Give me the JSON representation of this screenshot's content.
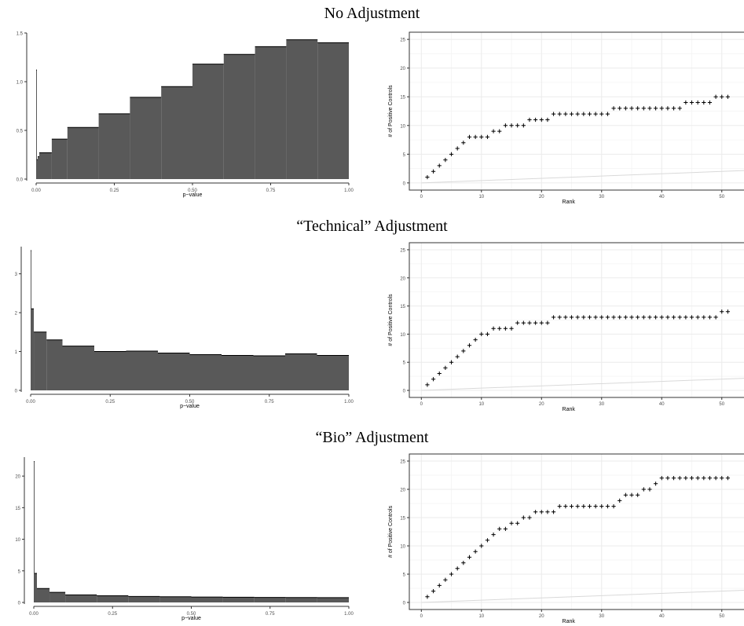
{
  "sections": [
    {
      "title": "No Adjustment"
    },
    {
      "title": "“Technical” Adjustment"
    },
    {
      "title": "“Bio” Adjustment"
    }
  ],
  "colors": {
    "fill": "#595959",
    "outline": "#000000",
    "grid": "#ebebeb",
    "diag": "#d9d9d9",
    "axis": "#333333"
  },
  "chart_data": [
    {
      "type": "bar",
      "subtype": "histogram",
      "xlabel": "p−value",
      "ylabel": "",
      "xlim": [
        0,
        1
      ],
      "ylim": [
        0,
        1.5
      ],
      "xticks": [
        0,
        0.25,
        0.5,
        0.75,
        1
      ],
      "xtick_labels": [
        "0.00",
        "0.25",
        "0.50",
        "0.75",
        "1.00"
      ],
      "yticks": [
        0,
        0.5,
        1.0,
        1.5
      ],
      "ytick_labels": [
        "0.0",
        "0.5",
        "1.0",
        "1.5"
      ],
      "grid": false,
      "bins": [
        {
          "x0": 0.0,
          "x1": 0.002,
          "value": 1.12
        },
        {
          "x0": 0.002,
          "x1": 0.005,
          "value": 0.2
        },
        {
          "x0": 0.005,
          "x1": 0.01,
          "value": 0.23
        },
        {
          "x0": 0.01,
          "x1": 0.05,
          "value": 0.27
        },
        {
          "x0": 0.05,
          "x1": 0.1,
          "value": 0.41
        },
        {
          "x0": 0.1,
          "x1": 0.2,
          "value": 0.53
        },
        {
          "x0": 0.2,
          "x1": 0.3,
          "value": 0.67
        },
        {
          "x0": 0.3,
          "x1": 0.4,
          "value": 0.84
        },
        {
          "x0": 0.4,
          "x1": 0.5,
          "value": 0.95
        },
        {
          "x0": 0.5,
          "x1": 0.6,
          "value": 1.18
        },
        {
          "x0": 0.6,
          "x1": 0.7,
          "value": 1.28
        },
        {
          "x0": 0.7,
          "x1": 0.8,
          "value": 1.36
        },
        {
          "x0": 0.8,
          "x1": 0.9,
          "value": 1.43
        },
        {
          "x0": 0.9,
          "x1": 1.0,
          "value": 1.4
        }
      ]
    },
    {
      "type": "scatter",
      "marker": "+",
      "xlabel": "Rank",
      "ylabel": "# of Positive Controls",
      "xlim": [
        -2,
        55
      ],
      "ylim": [
        -1.25,
        26.25
      ],
      "xticks": [
        0,
        10,
        20,
        30,
        40,
        50
      ],
      "yticks": [
        0,
        5,
        10,
        15,
        20,
        25
      ],
      "grid": true,
      "reference_line": {
        "x": [
          0,
          55
        ],
        "y": [
          0,
          2.2
        ]
      },
      "x": [
        1,
        2,
        3,
        4,
        5,
        6,
        7,
        8,
        9,
        10,
        11,
        12,
        13,
        14,
        15,
        16,
        17,
        18,
        19,
        20,
        21,
        22,
        23,
        24,
        25,
        26,
        27,
        28,
        29,
        30,
        31,
        32,
        33,
        34,
        35,
        36,
        37,
        38,
        39,
        40,
        41,
        42,
        43,
        44,
        45,
        46,
        47,
        48,
        49,
        50,
        51
      ],
      "y": [
        1,
        2,
        3,
        4,
        5,
        6,
        7,
        8,
        8,
        8,
        8,
        9,
        9,
        10,
        10,
        10,
        10,
        11,
        11,
        11,
        11,
        12,
        12,
        12,
        12,
        12,
        12,
        12,
        12,
        12,
        12,
        13,
        13,
        13,
        13,
        13,
        13,
        13,
        13,
        13,
        13,
        13,
        13,
        14,
        14,
        14,
        14,
        14,
        15,
        15,
        15
      ]
    },
    {
      "type": "bar",
      "subtype": "histogram",
      "xlabel": "p−value",
      "ylabel": "",
      "xlim": [
        0,
        1
      ],
      "ylim": [
        0,
        3.7
      ],
      "xticks": [
        0,
        0.25,
        0.5,
        0.75,
        1
      ],
      "xtick_labels": [
        "0.00",
        "0.25",
        "0.50",
        "0.75",
        "1.00"
      ],
      "yticks": [
        0,
        1,
        2,
        3
      ],
      "ytick_labels": [
        "0",
        "1",
        "2",
        "3"
      ],
      "grid": false,
      "bins": [
        {
          "x0": 0.0,
          "x1": 0.002,
          "value": 3.6
        },
        {
          "x0": 0.002,
          "x1": 0.01,
          "value": 2.1
        },
        {
          "x0": 0.01,
          "x1": 0.05,
          "value": 1.5
        },
        {
          "x0": 0.05,
          "x1": 0.1,
          "value": 1.3
        },
        {
          "x0": 0.1,
          "x1": 0.2,
          "value": 1.14
        },
        {
          "x0": 0.2,
          "x1": 0.3,
          "value": 1.0
        },
        {
          "x0": 0.3,
          "x1": 0.4,
          "value": 1.01
        },
        {
          "x0": 0.4,
          "x1": 0.5,
          "value": 0.96
        },
        {
          "x0": 0.5,
          "x1": 0.6,
          "value": 0.92
        },
        {
          "x0": 0.6,
          "x1": 0.7,
          "value": 0.9
        },
        {
          "x0": 0.7,
          "x1": 0.8,
          "value": 0.89
        },
        {
          "x0": 0.8,
          "x1": 0.9,
          "value": 0.94
        },
        {
          "x0": 0.9,
          "x1": 1.0,
          "value": 0.9
        }
      ]
    },
    {
      "type": "scatter",
      "marker": "+",
      "xlabel": "Rank",
      "ylabel": "# of Positive Controls",
      "xlim": [
        -2,
        55
      ],
      "ylim": [
        -1.25,
        26.25
      ],
      "xticks": [
        0,
        10,
        20,
        30,
        40,
        50
      ],
      "yticks": [
        0,
        5,
        10,
        15,
        20,
        25
      ],
      "grid": true,
      "reference_line": {
        "x": [
          0,
          55
        ],
        "y": [
          0,
          2.2
        ]
      },
      "x": [
        1,
        2,
        3,
        4,
        5,
        6,
        7,
        8,
        9,
        10,
        11,
        12,
        13,
        14,
        15,
        16,
        17,
        18,
        19,
        20,
        21,
        22,
        23,
        24,
        25,
        26,
        27,
        28,
        29,
        30,
        31,
        32,
        33,
        34,
        35,
        36,
        37,
        38,
        39,
        40,
        41,
        42,
        43,
        44,
        45,
        46,
        47,
        48,
        49,
        50,
        51
      ],
      "y": [
        1,
        2,
        3,
        4,
        5,
        6,
        7,
        8,
        9,
        10,
        10,
        11,
        11,
        11,
        11,
        12,
        12,
        12,
        12,
        12,
        12,
        13,
        13,
        13,
        13,
        13,
        13,
        13,
        13,
        13,
        13,
        13,
        13,
        13,
        13,
        13,
        13,
        13,
        13,
        13,
        13,
        13,
        13,
        13,
        13,
        13,
        13,
        13,
        13,
        14,
        14
      ]
    },
    {
      "type": "bar",
      "subtype": "histogram",
      "xlabel": "p−value",
      "ylabel": "",
      "xlim": [
        0,
        1
      ],
      "ylim": [
        0,
        23
      ],
      "xticks": [
        0,
        0.25,
        0.5,
        0.75,
        1
      ],
      "xtick_labels": [
        "0.00",
        "0.25",
        "0.50",
        "0.75",
        "1.00"
      ],
      "yticks": [
        0,
        5,
        10,
        15,
        20
      ],
      "ytick_labels": [
        "0",
        "5",
        "10",
        "15",
        "20"
      ],
      "grid": false,
      "bins": [
        {
          "x0": 0.0,
          "x1": 0.002,
          "value": 22.3
        },
        {
          "x0": 0.002,
          "x1": 0.01,
          "value": 4.6
        },
        {
          "x0": 0.01,
          "x1": 0.05,
          "value": 2.2
        },
        {
          "x0": 0.05,
          "x1": 0.1,
          "value": 1.6
        },
        {
          "x0": 0.1,
          "x1": 0.2,
          "value": 1.2
        },
        {
          "x0": 0.2,
          "x1": 0.3,
          "value": 1.05
        },
        {
          "x0": 0.3,
          "x1": 0.4,
          "value": 0.95
        },
        {
          "x0": 0.4,
          "x1": 0.5,
          "value": 0.9
        },
        {
          "x0": 0.5,
          "x1": 0.6,
          "value": 0.85
        },
        {
          "x0": 0.6,
          "x1": 0.7,
          "value": 0.82
        },
        {
          "x0": 0.7,
          "x1": 0.8,
          "value": 0.8
        },
        {
          "x0": 0.8,
          "x1": 0.9,
          "value": 0.78
        },
        {
          "x0": 0.9,
          "x1": 1.0,
          "value": 0.76
        }
      ]
    },
    {
      "type": "scatter",
      "marker": "+",
      "xlabel": "Rank",
      "ylabel": "# of Positive Controls",
      "xlim": [
        -2,
        55
      ],
      "ylim": [
        -1.25,
        26.25
      ],
      "xticks": [
        0,
        10,
        20,
        30,
        40,
        50
      ],
      "yticks": [
        0,
        5,
        10,
        15,
        20,
        25
      ],
      "grid": true,
      "reference_line": {
        "x": [
          0,
          55
        ],
        "y": [
          0,
          2.2
        ]
      },
      "x": [
        1,
        2,
        3,
        4,
        5,
        6,
        7,
        8,
        9,
        10,
        11,
        12,
        13,
        14,
        15,
        16,
        17,
        18,
        19,
        20,
        21,
        22,
        23,
        24,
        25,
        26,
        27,
        28,
        29,
        30,
        31,
        32,
        33,
        34,
        35,
        36,
        37,
        38,
        39,
        40,
        41,
        42,
        43,
        44,
        45,
        46,
        47,
        48,
        49,
        50,
        51
      ],
      "y": [
        1,
        2,
        3,
        4,
        5,
        6,
        7,
        8,
        9,
        10,
        11,
        12,
        13,
        13,
        14,
        14,
        15,
        15,
        16,
        16,
        16,
        16,
        17,
        17,
        17,
        17,
        17,
        17,
        17,
        17,
        17,
        17,
        18,
        19,
        19,
        19,
        20,
        20,
        21,
        22,
        22,
        22,
        22,
        22,
        22,
        22,
        22,
        22,
        22,
        22,
        22
      ]
    }
  ]
}
